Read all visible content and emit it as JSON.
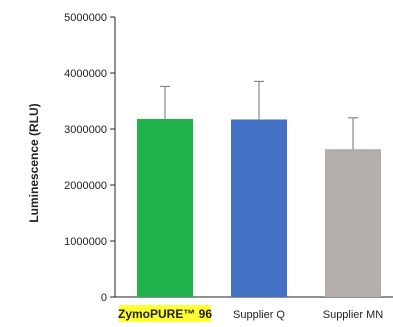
{
  "chart_data": {
    "type": "bar",
    "ylabel": "Luminescence (RLU)",
    "ylim": [
      0,
      5000000
    ],
    "yticks": [
      0,
      1000000,
      2000000,
      3000000,
      4000000,
      5000000
    ],
    "ytick_labels": [
      "0",
      "1000000",
      "2000000",
      "3000000",
      "4000000",
      "5000000"
    ],
    "categories": [
      "ZymoPURE™ 96",
      "Supplier Q",
      "Supplier MN"
    ],
    "values": [
      3180000,
      3170000,
      2640000
    ],
    "errors": [
      580000,
      680000,
      560000
    ],
    "bar_colors": [
      "#22b24c",
      "#4472c4",
      "#b3aeab"
    ],
    "highlight": {
      "category_index": 0,
      "label_bg_color": "#ffff33"
    },
    "grid": false,
    "legend": "none"
  }
}
